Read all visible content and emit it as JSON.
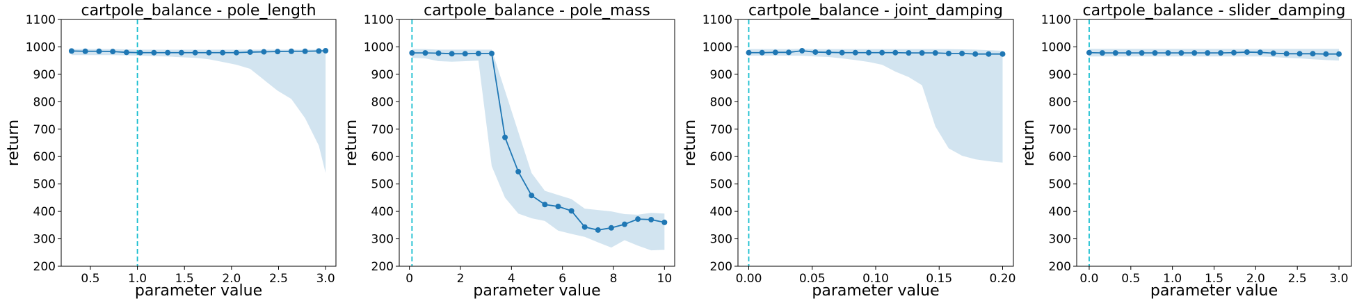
{
  "chart_data": [
    {
      "type": "line",
      "title": "cartpole_balance - pole_length",
      "xlabel": "parameter value",
      "ylabel": "return",
      "xlim": [
        0.19,
        3.11
      ],
      "ylim": [
        200,
        1100
      ],
      "xticks": [
        0.5,
        1.0,
        1.5,
        2.0,
        2.5,
        3.0
      ],
      "xtick_labels": [
        "0.5",
        "1.0",
        "1.5",
        "2.0",
        "2.5",
        "3.0"
      ],
      "yticks": [
        200,
        300,
        400,
        500,
        600,
        700,
        800,
        900,
        1000,
        1100
      ],
      "ytick_labels": [
        "200",
        "300",
        "400",
        "500",
        "600",
        "700",
        "800",
        "900",
        "1000",
        "1100"
      ],
      "reference_x": 1.0,
      "series": [
        {
          "x": [
            0.3,
            0.446,
            0.592,
            0.738,
            0.884,
            1.03,
            1.176,
            1.322,
            1.468,
            1.614,
            1.76,
            1.906,
            2.052,
            2.198,
            2.344,
            2.49,
            2.636,
            2.782,
            2.928,
            3.0
          ],
          "y": [
            985,
            984,
            984,
            983,
            980,
            979,
            979,
            979,
            979,
            979,
            979,
            979,
            979,
            981,
            982,
            983,
            984,
            984,
            985,
            986
          ],
          "lower": [
            970,
            970,
            970,
            970,
            969,
            968,
            966,
            965,
            962,
            960,
            955,
            945,
            935,
            920,
            880,
            840,
            810,
            740,
            640,
            540
          ],
          "upper": [
            992,
            992,
            992,
            992,
            991,
            990,
            990,
            990,
            990,
            990,
            990,
            990,
            990,
            990,
            990,
            990,
            990,
            990,
            990,
            990
          ]
        }
      ]
    },
    {
      "type": "line",
      "title": "cartpole_balance - pole_mass",
      "xlabel": "parameter value",
      "ylabel": "return",
      "xlim": [
        -0.4,
        10.4
      ],
      "ylim": [
        200,
        1100
      ],
      "xticks": [
        0,
        2,
        4,
        6,
        8,
        10
      ],
      "xtick_labels": [
        "0",
        "2",
        "4",
        "6",
        "8",
        "10"
      ],
      "yticks": [
        200,
        300,
        400,
        500,
        600,
        700,
        800,
        900,
        1000,
        1100
      ],
      "ytick_labels": [
        "200",
        "300",
        "400",
        "500",
        "600",
        "700",
        "800",
        "900",
        "1000",
        "1100"
      ],
      "reference_x": 0.1,
      "series": [
        {
          "x": [
            0.1,
            0.621,
            1.142,
            1.663,
            2.184,
            2.705,
            3.226,
            3.747,
            4.268,
            4.789,
            5.31,
            5.831,
            6.352,
            6.873,
            7.394,
            7.915,
            8.436,
            8.957,
            9.478,
            10.0
          ],
          "y": [
            978,
            978,
            977,
            975,
            975,
            976,
            976,
            670,
            545,
            458,
            425,
            418,
            402,
            343,
            332,
            340,
            353,
            372,
            370,
            360
          ],
          "lower": [
            960,
            958,
            948,
            946,
            948,
            950,
            565,
            450,
            392,
            375,
            365,
            330,
            318,
            307,
            287,
            268,
            295,
            275,
            258,
            260
          ],
          "upper": [
            992,
            992,
            990,
            990,
            990,
            990,
            990,
            840,
            690,
            540,
            475,
            460,
            445,
            410,
            405,
            400,
            390,
            388,
            395,
            392
          ]
        }
      ]
    },
    {
      "type": "line",
      "title": "cartpole_balance - joint_damping",
      "xlabel": "parameter value",
      "ylabel": "return",
      "xlim": [
        -0.0085,
        0.2085
      ],
      "ylim": [
        200,
        1100
      ],
      "xticks": [
        0.0,
        0.05,
        0.1,
        0.15,
        0.2
      ],
      "xtick_labels": [
        "0.00",
        "0.05",
        "0.10",
        "0.15",
        "0.20"
      ],
      "yticks": [
        200,
        300,
        400,
        500,
        600,
        700,
        800,
        900,
        1000,
        1100
      ],
      "ytick_labels": [
        "200",
        "300",
        "400",
        "500",
        "600",
        "700",
        "800",
        "900",
        "1000",
        "1100"
      ],
      "reference_x": 0.0,
      "series": [
        {
          "x": [
            0.0,
            0.0105,
            0.021,
            0.0315,
            0.042,
            0.0525,
            0.063,
            0.0735,
            0.084,
            0.0945,
            0.105,
            0.1155,
            0.126,
            0.1365,
            0.147,
            0.1575,
            0.168,
            0.1785,
            0.189,
            0.2
          ],
          "y": [
            979,
            979,
            980,
            980,
            986,
            981,
            980,
            979,
            979,
            979,
            979,
            979,
            978,
            978,
            978,
            976,
            976,
            974,
            974,
            974
          ],
          "lower": [
            968,
            968,
            968,
            968,
            968,
            965,
            963,
            958,
            952,
            945,
            935,
            910,
            890,
            860,
            710,
            630,
            603,
            590,
            583,
            578
          ],
          "upper": [
            992,
            992,
            992,
            992,
            993,
            992,
            992,
            992,
            992,
            992,
            992,
            992,
            992,
            992,
            992,
            992,
            991,
            990,
            988,
            986
          ]
        }
      ]
    },
    {
      "type": "line",
      "title": "cartpole_balance - slider_damping",
      "xlabel": "parameter value",
      "ylabel": "return",
      "xlim": [
        -0.15,
        3.15
      ],
      "ylim": [
        200,
        1100
      ],
      "xticks": [
        0.0,
        0.5,
        1.0,
        1.5,
        2.0,
        2.5,
        3.0
      ],
      "xtick_labels": [
        "0.0",
        "0.5",
        "1.0",
        "1.5",
        "2.0",
        "2.5",
        "3.0"
      ],
      "yticks": [
        200,
        300,
        400,
        500,
        600,
        700,
        800,
        900,
        1000,
        1100
      ],
      "ytick_labels": [
        "200",
        "300",
        "400",
        "500",
        "600",
        "700",
        "800",
        "900",
        "1000",
        "1100"
      ],
      "reference_x": 0.0,
      "series": [
        {
          "x": [
            0.0,
            0.158,
            0.316,
            0.474,
            0.632,
            0.79,
            0.948,
            1.106,
            1.264,
            1.422,
            1.58,
            1.738,
            1.896,
            2.054,
            2.212,
            2.37,
            2.528,
            2.686,
            2.844,
            3.0
          ],
          "y": [
            979,
            978,
            978,
            978,
            978,
            978,
            978,
            978,
            978,
            978,
            978,
            979,
            981,
            980,
            977,
            975,
            975,
            975,
            974,
            974
          ],
          "lower": [
            965,
            965,
            965,
            965,
            965,
            965,
            965,
            965,
            965,
            965,
            965,
            965,
            965,
            965,
            963,
            960,
            958,
            955,
            952,
            950
          ],
          "upper": [
            993,
            993,
            993,
            993,
            993,
            993,
            993,
            993,
            993,
            993,
            993,
            993,
            993,
            993,
            993,
            993,
            993,
            993,
            993,
            993
          ]
        }
      ]
    }
  ],
  "colors": {
    "line": "#1f77b4",
    "band": "#1f77b4",
    "reference": "#17becf",
    "axis": "#000000"
  }
}
